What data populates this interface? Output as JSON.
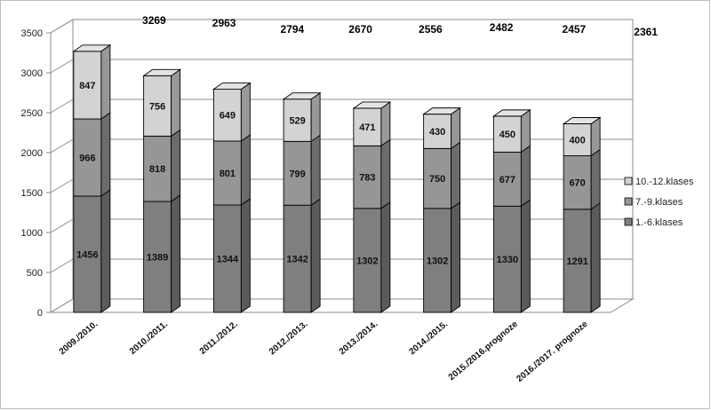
{
  "chart_data": {
    "type": "bar",
    "stacked": true,
    "three_d": true,
    "categories": [
      "2009./2010.",
      "2010./2011.",
      "2011./2012.",
      "2012./2013.",
      "2013./2014.",
      "2014./2015.",
      "2015./2016.prognoze",
      "2016./2017. prognoze"
    ],
    "series": [
      {
        "name": "1.-6.klases",
        "values": [
          1456,
          1389,
          1344,
          1342,
          1302,
          1302,
          1330,
          1291
        ],
        "color": "#7f7f7f"
      },
      {
        "name": "7.-9.klases",
        "values": [
          966,
          818,
          801,
          799,
          783,
          750,
          677,
          670
        ],
        "color": "#969696"
      },
      {
        "name": "10.-12.klases",
        "values": [
          847,
          756,
          649,
          529,
          471,
          430,
          450,
          400
        ],
        "color": "#d3d3d3"
      }
    ],
    "totals": [
      3269,
      2963,
      2794,
      2670,
      2556,
      2482,
      2457,
      2361
    ],
    "yticks": [
      "0",
      "500",
      "1000",
      "1500",
      "2000",
      "2500",
      "3000",
      "3500"
    ],
    "ylim": [
      0,
      3500
    ],
    "legend_order": [
      "10.-12.klases",
      "7.-9.klases",
      "1.-6.klases"
    ],
    "legend_position": "right",
    "title": "",
    "xlabel": "",
    "ylabel": ""
  }
}
